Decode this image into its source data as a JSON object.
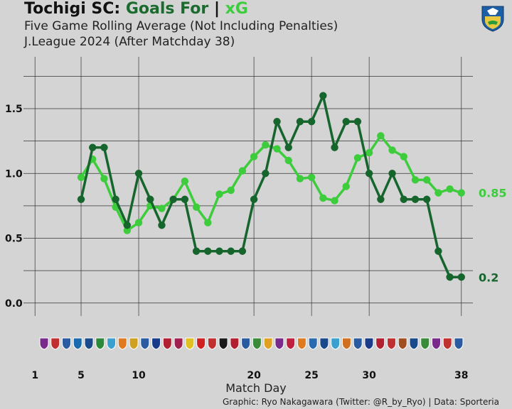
{
  "header": {
    "title_team": "Tochigi SC:",
    "title_goals": "Goals For",
    "title_sep": "|",
    "title_xg": "xG",
    "subtitle1": "Five Game Rolling Average (Not Including Penalties)",
    "subtitle2": "J.League 2024 (After Matchday 38)",
    "caption": "Graphic: Ryo Nakagawara (Twitter: @R_by_Ryo) | Data: Sporteria"
  },
  "colors": {
    "goals": "#16652c",
    "xg": "#3ccc3c",
    "background": "#d4d4d4",
    "grid": "#333333"
  },
  "chart_data": {
    "type": "line",
    "title": "",
    "xlabel": "Match Day",
    "ylabel": "",
    "xlim": [
      0,
      39
    ],
    "ylim": [
      -0.1,
      1.9
    ],
    "yticks": [
      0.0,
      0.5,
      1.0,
      1.5
    ],
    "ytick_labels": [
      "0.0",
      "0.5",
      "1.0",
      "1.5"
    ],
    "xticks": [
      1,
      5,
      10,
      20,
      25,
      30,
      38
    ],
    "xtick_labels": [
      "1",
      "5",
      "10",
      "20",
      "25",
      "30",
      "38"
    ],
    "grid": true,
    "x": [
      5,
      6,
      7,
      8,
      9,
      10,
      11,
      12,
      13,
      14,
      15,
      16,
      17,
      18,
      19,
      20,
      21,
      22,
      23,
      24,
      25,
      26,
      27,
      28,
      29,
      30,
      31,
      32,
      33,
      34,
      35,
      36,
      37,
      38
    ],
    "series": [
      {
        "key": "goals",
        "values": [
          0.8,
          1.2,
          1.2,
          0.8,
          0.6,
          1.0,
          0.8,
          0.6,
          0.8,
          0.8,
          0.4,
          0.4,
          0.4,
          0.4,
          0.4,
          0.8,
          1.0,
          1.4,
          1.2,
          1.4,
          1.4,
          1.6,
          1.2,
          1.4,
          1.4,
          1.0,
          0.8,
          1.0,
          0.8,
          0.8,
          0.8,
          0.4,
          0.2,
          0.2
        ],
        "end_label": "0.2"
      },
      {
        "key": "xg",
        "values": [
          0.97,
          1.11,
          0.96,
          0.74,
          0.56,
          0.62,
          0.75,
          0.73,
          0.8,
          0.94,
          0.74,
          0.62,
          0.84,
          0.87,
          1.02,
          1.13,
          1.22,
          1.19,
          1.1,
          0.96,
          0.97,
          0.81,
          0.79,
          0.9,
          1.12,
          1.16,
          1.29,
          1.18,
          1.13,
          0.95,
          0.95,
          0.85,
          0.88,
          0.85
        ],
        "end_label": "0.85"
      }
    ]
  }
}
